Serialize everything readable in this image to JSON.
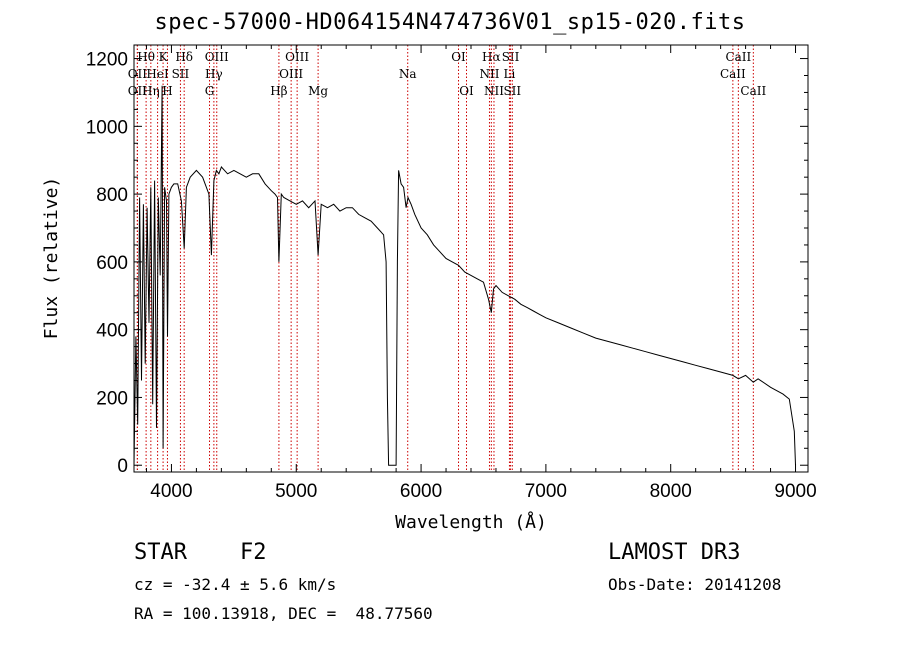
{
  "chart_data": {
    "type": "line",
    "title": "spec-57000-HD064154N474736V01_sp15-020.fits",
    "xlabel": "Wavelength (Å)",
    "ylabel": "Flux (relative)",
    "xlim": [
      3700,
      9100
    ],
    "ylim": [
      -20,
      1240
    ],
    "xticks": [
      4000,
      5000,
      6000,
      7000,
      8000,
      9000
    ],
    "yticks": [
      0,
      200,
      400,
      600,
      800,
      1000,
      1200
    ],
    "series": [
      {
        "name": "spectrum",
        "x": [
          3700,
          3715,
          3730,
          3745,
          3760,
          3775,
          3790,
          3805,
          3820,
          3835,
          3850,
          3865,
          3880,
          3895,
          3910,
          3925,
          3933,
          3945,
          3960,
          3968,
          3980,
          4000,
          4020,
          4050,
          4080,
          4102,
          4120,
          4150,
          4200,
          4250,
          4300,
          4320,
          4340,
          4360,
          4380,
          4400,
          4450,
          4500,
          4550,
          4600,
          4650,
          4700,
          4750,
          4800,
          4830,
          4850,
          4861,
          4880,
          4900,
          4950,
          5000,
          5050,
          5100,
          5150,
          5175,
          5200,
          5250,
          5300,
          5350,
          5400,
          5450,
          5500,
          5550,
          5600,
          5650,
          5700,
          5720,
          5730,
          5740,
          5760,
          5780,
          5800,
          5810,
          5820,
          5840,
          5860,
          5880,
          5895,
          5920,
          5950,
          6000,
          6050,
          6100,
          6150,
          6200,
          6250,
          6300,
          6350,
          6400,
          6450,
          6500,
          6540,
          6563,
          6580,
          6600,
          6650,
          6700,
          6750,
          6800,
          6850,
          6900,
          6950,
          7000,
          7100,
          7200,
          7300,
          7400,
          7500,
          7600,
          7700,
          7800,
          7900,
          8000,
          8100,
          8200,
          8300,
          8400,
          8498,
          8542,
          8600,
          8662,
          8700,
          8800,
          8850,
          8900,
          8950,
          8990,
          9000
        ],
        "y": [
          0,
          380,
          120,
          790,
          250,
          770,
          300,
          760,
          420,
          820,
          180,
          840,
          110,
          790,
          560,
          1120,
          50,
          820,
          780,
          380,
          800,
          820,
          830,
          830,
          780,
          640,
          820,
          850,
          870,
          850,
          800,
          620,
          840,
          870,
          860,
          880,
          860,
          870,
          860,
          850,
          860,
          860,
          830,
          810,
          800,
          790,
          600,
          800,
          790,
          780,
          770,
          780,
          760,
          780,
          620,
          770,
          760,
          770,
          750,
          760,
          760,
          740,
          730,
          720,
          700,
          680,
          600,
          200,
          0,
          0,
          0,
          0,
          600,
          870,
          830,
          820,
          760,
          790,
          770,
          740,
          700,
          680,
          650,
          630,
          610,
          600,
          590,
          570,
          560,
          550,
          540,
          490,
          450,
          520,
          530,
          510,
          500,
          490,
          475,
          465,
          455,
          445,
          435,
          420,
          405,
          390,
          375,
          365,
          355,
          345,
          335,
          325,
          315,
          305,
          295,
          285,
          275,
          265,
          255,
          265,
          245,
          255,
          230,
          220,
          210,
          195,
          100,
          0
        ]
      }
    ],
    "line_markers": [
      {
        "label": "Hθ",
        "wl": 3797,
        "row": 1
      },
      {
        "label": "OII",
        "wl": 3727,
        "row": 2
      },
      {
        "label": "OII",
        "wl": 3727,
        "row": 3
      },
      {
        "label": "Hη",
        "wl": 3835,
        "row": 3
      },
      {
        "label": "HeI",
        "wl": 3889,
        "row": 2
      },
      {
        "label": "K",
        "wl": 3933,
        "row": 1
      },
      {
        "label": "H",
        "wl": 3968,
        "row": 3
      },
      {
        "label": "Hδ",
        "wl": 4102,
        "row": 1
      },
      {
        "label": "SII",
        "wl": 4072,
        "row": 2
      },
      {
        "label": "OIII",
        "wl": 4363,
        "row": 1
      },
      {
        "label": "Hγ",
        "wl": 4340,
        "row": 2
      },
      {
        "label": "G",
        "wl": 4305,
        "row": 3
      },
      {
        "label": "Hβ",
        "wl": 4861,
        "row": 3
      },
      {
        "label": "OIII",
        "wl": 5007,
        "row": 1
      },
      {
        "label": "OIII",
        "wl": 4959,
        "row": 2
      },
      {
        "label": "Mg",
        "wl": 5175,
        "row": 3
      },
      {
        "label": "Na",
        "wl": 5893,
        "row": 2
      },
      {
        "label": "OI",
        "wl": 6300,
        "row": 1
      },
      {
        "label": "OI",
        "wl": 6364,
        "row": 3
      },
      {
        "label": "Hα",
        "wl": 6563,
        "row": 1
      },
      {
        "label": "SII",
        "wl": 6717,
        "row": 1
      },
      {
        "label": "NII",
        "wl": 6548,
        "row": 2
      },
      {
        "label": "Li",
        "wl": 6708,
        "row": 2
      },
      {
        "label": "NII",
        "wl": 6584,
        "row": 3
      },
      {
        "label": "SII",
        "wl": 6731,
        "row": 3
      },
      {
        "label": "CaII",
        "wl": 8542,
        "row": 1
      },
      {
        "label": "CaII",
        "wl": 8498,
        "row": 2
      },
      {
        "label": "CaII",
        "wl": 8662,
        "row": 3
      }
    ]
  },
  "info": {
    "object_type": "STAR",
    "subclass": "F2",
    "survey": "LAMOST DR3",
    "cz": "cz = -32.4 ± 5.6 km/s",
    "obs_date": "Obs-Date: 20141208",
    "radec": "RA = 100.13918, DEC =  48.77560"
  },
  "colors": {
    "line": "#000000",
    "marker": "#cc0000",
    "axis": "#000000"
  }
}
